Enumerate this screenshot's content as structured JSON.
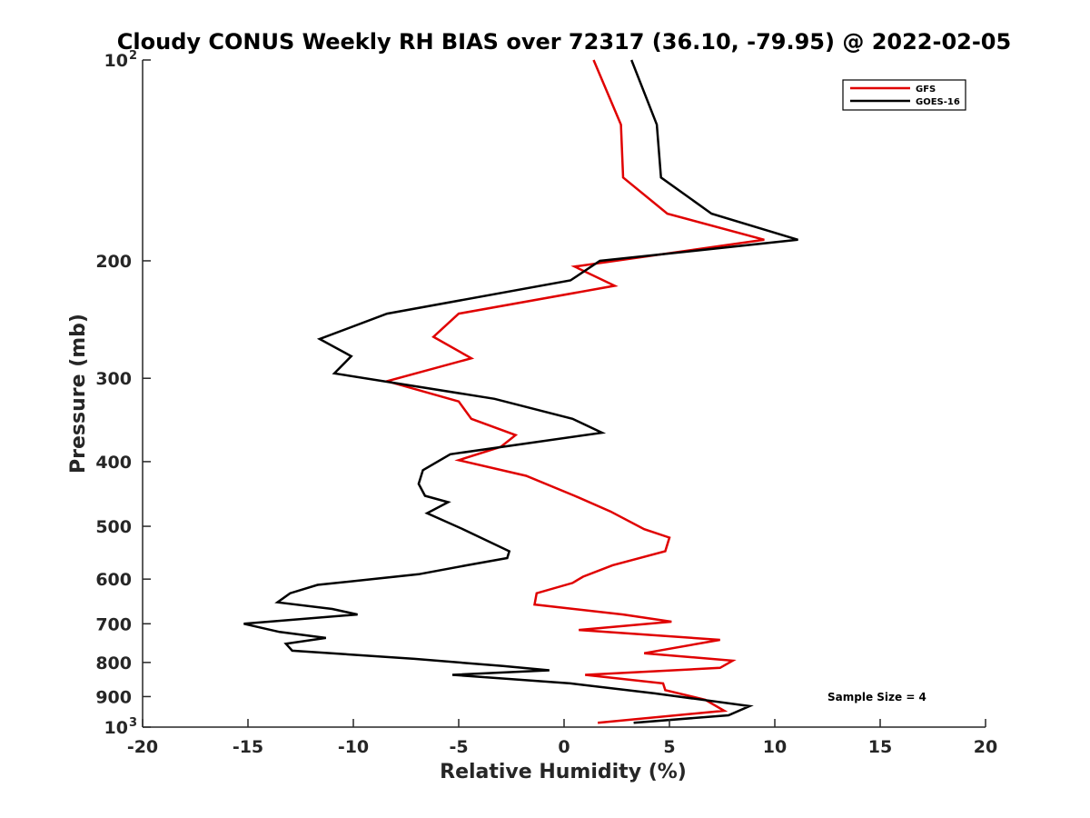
{
  "chart_data": {
    "type": "line",
    "title": "Cloudy CONUS Weekly RH BIAS over 72317 (36.10, -79.95) @ 2022-02-05",
    "xlabel": "Relative Humidity (%)",
    "ylabel": "Pressure (mb)",
    "xlim": [
      -20,
      20
    ],
    "ylim": [
      100,
      1000
    ],
    "yscale": "log",
    "y_reversed": true,
    "grid": false,
    "legend_position": "top-right",
    "x_ticks": [
      -20,
      -15,
      -10,
      -5,
      0,
      5,
      10,
      15,
      20
    ],
    "x_tick_labels": [
      "-20",
      "-15",
      "-10",
      "-5",
      "0",
      "5",
      "10",
      "15",
      "20"
    ],
    "y_ticks": [
      {
        "value": 100,
        "label": "10",
        "sup": "2"
      },
      {
        "value": 200,
        "label": "200",
        "sup": ""
      },
      {
        "value": 300,
        "label": "300",
        "sup": ""
      },
      {
        "value": 400,
        "label": "400",
        "sup": ""
      },
      {
        "value": 500,
        "label": "500",
        "sup": ""
      },
      {
        "value": 600,
        "label": "600",
        "sup": ""
      },
      {
        "value": 700,
        "label": "700",
        "sup": ""
      },
      {
        "value": 800,
        "label": "800",
        "sup": ""
      },
      {
        "value": 900,
        "label": "900",
        "sup": ""
      },
      {
        "value": 1000,
        "label": "10",
        "sup": "3"
      }
    ],
    "series": [
      {
        "name": "GFS",
        "color": "#e00000",
        "points": [
          [
            1.4,
            100
          ],
          [
            2.7,
            125
          ],
          [
            2.8,
            150
          ],
          [
            4.9,
            170
          ],
          [
            9.5,
            186
          ],
          [
            0.5,
            204
          ],
          [
            2.4,
            218
          ],
          [
            -5.0,
            240
          ],
          [
            -6.2,
            260
          ],
          [
            -4.4,
            280
          ],
          [
            -8.4,
            303
          ],
          [
            -5.0,
            325
          ],
          [
            -4.4,
            345
          ],
          [
            -2.3,
            365
          ],
          [
            -3.0,
            380
          ],
          [
            -5.0,
            398
          ],
          [
            -1.8,
            420
          ],
          [
            0.5,
            450
          ],
          [
            2.2,
            475
          ],
          [
            3.8,
            505
          ],
          [
            5.0,
            520
          ],
          [
            4.8,
            545
          ],
          [
            2.3,
            572
          ],
          [
            0.9,
            595
          ],
          [
            0.4,
            608
          ],
          [
            -1.3,
            630
          ],
          [
            -1.4,
            655
          ],
          [
            2.8,
            678
          ],
          [
            5.1,
            695
          ],
          [
            0.7,
            715
          ],
          [
            7.4,
            740
          ],
          [
            3.8,
            775
          ],
          [
            8.0,
            795
          ],
          [
            7.4,
            815
          ],
          [
            1.0,
            835
          ],
          [
            4.7,
            860
          ],
          [
            4.8,
            880
          ],
          [
            6.7,
            910
          ],
          [
            7.6,
            945
          ],
          [
            1.6,
            985
          ]
        ]
      },
      {
        "name": "GOES-16",
        "color": "#000000",
        "points": [
          [
            3.2,
            100
          ],
          [
            4.4,
            125
          ],
          [
            4.6,
            150
          ],
          [
            7.0,
            170
          ],
          [
            11.1,
            186
          ],
          [
            1.7,
            200
          ],
          [
            0.3,
            214
          ],
          [
            -8.4,
            240
          ],
          [
            -11.6,
            262
          ],
          [
            -10.1,
            278
          ],
          [
            -10.9,
            295
          ],
          [
            -3.3,
            322
          ],
          [
            0.4,
            345
          ],
          [
            1.8,
            362
          ],
          [
            -5.4,
            390
          ],
          [
            -6.7,
            412
          ],
          [
            -6.9,
            432
          ],
          [
            -6.6,
            450
          ],
          [
            -5.5,
            460
          ],
          [
            -6.5,
            478
          ],
          [
            -4.8,
            505
          ],
          [
            -2.6,
            545
          ],
          [
            -2.7,
            558
          ],
          [
            -4.6,
            572
          ],
          [
            -6.9,
            590
          ],
          [
            -11.7,
            612
          ],
          [
            -13.0,
            630
          ],
          [
            -13.6,
            650
          ],
          [
            -11.0,
            665
          ],
          [
            -9.8,
            678
          ],
          [
            -15.2,
            700
          ],
          [
            -13.5,
            720
          ],
          [
            -11.3,
            735
          ],
          [
            -13.2,
            750
          ],
          [
            -12.9,
            768
          ],
          [
            -7.1,
            790
          ],
          [
            -2.9,
            810
          ],
          [
            -0.7,
            822
          ],
          [
            -5.3,
            835
          ],
          [
            0.3,
            860
          ],
          [
            4.3,
            890
          ],
          [
            8.8,
            930
          ],
          [
            7.8,
            960
          ],
          [
            3.3,
            985
          ]
        ]
      }
    ],
    "annotations": [
      "Sample Size = 4"
    ]
  }
}
